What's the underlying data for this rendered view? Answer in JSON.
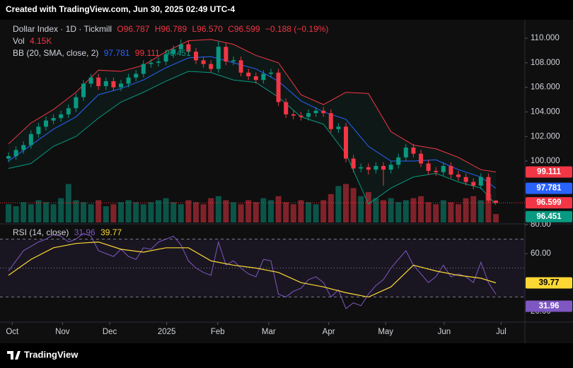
{
  "chart_data": {
    "type": "candlestick",
    "credit": "Created with TradingView.com, Jun 30, 2025 02:49 UTC-4",
    "header": {
      "symbol": "Dollar Index · 1D · Tickmill",
      "open": "O96.787",
      "high": "H96.789",
      "low": "L96.570",
      "close": "C96.599",
      "change": "−0.188 (−0.19%)",
      "vol_label": "Vol",
      "vol": "4.15K",
      "bb_label": "BB (20, SMA, close, 2)",
      "rsi_label": "RSI (14, close)"
    },
    "footer": "TradingView",
    "up_color": "#089981",
    "down_color": "#f23645",
    "open": [
      100.2,
      100.4,
      100.9,
      101.3,
      102.2,
      102.8,
      103.3,
      103.5,
      103.8,
      104.3,
      105.2,
      106.3,
      106.8,
      106.1,
      106.5,
      106.0,
      106.3,
      106.8,
      107.1,
      107.9,
      108.0,
      108.1,
      108.7,
      109.1,
      109.5,
      108.9,
      108.2,
      107.9,
      107.5,
      109.3,
      108.1,
      108.2,
      107.2,
      106.9,
      106.6,
      107.1,
      107.2,
      104.8,
      103.8,
      103.7,
      103.6,
      103.9,
      104.1,
      103.9,
      102.6,
      102.8,
      100.2,
      99.4,
      99.5,
      99.3,
      99.6,
      99.3,
      99.7,
      100.3,
      101.1,
      100.6,
      99.8,
      99.2,
      99.1,
      99.6,
      98.9,
      98.7,
      98.3,
      98.0,
      98.7,
      96.787
    ],
    "high": [
      100.7,
      101.2,
      101.6,
      102.5,
      103.1,
      103.6,
      103.8,
      104.1,
      104.6,
      105.5,
      106.6,
      107.1,
      107.1,
      106.8,
      106.8,
      106.6,
      107.1,
      107.4,
      108.2,
      108.3,
      108.4,
      109.0,
      109.4,
      109.9,
      109.8,
      109.2,
      108.5,
      108.2,
      109.8,
      109.6,
      108.5,
      108.5,
      107.5,
      107.2,
      107.4,
      107.5,
      107.5,
      105.1,
      104.1,
      104.0,
      104.2,
      104.4,
      104.4,
      104.2,
      103.1,
      103.1,
      100.5,
      99.8,
      99.8,
      99.9,
      99.9,
      100.0,
      100.6,
      101.4,
      101.4,
      100.9,
      100.1,
      99.5,
      99.9,
      99.9,
      99.2,
      99.0,
      98.6,
      99.0,
      99.0,
      96.789
    ],
    "low": [
      99.9,
      100.1,
      100.6,
      101.0,
      101.9,
      102.5,
      103.0,
      103.2,
      103.5,
      104.0,
      104.9,
      106.0,
      105.8,
      105.8,
      105.7,
      105.7,
      106.0,
      106.5,
      106.8,
      107.6,
      107.7,
      107.8,
      108.4,
      108.8,
      108.6,
      107.9,
      107.6,
      107.2,
      107.2,
      107.8,
      107.8,
      106.9,
      106.6,
      106.3,
      106.3,
      106.8,
      104.5,
      103.5,
      103.4,
      103.3,
      103.3,
      103.6,
      103.6,
      102.3,
      102.3,
      99.9,
      99.1,
      99.1,
      98.9,
      99.0,
      98.0,
      99.0,
      99.4,
      100.0,
      100.3,
      99.5,
      98.9,
      98.8,
      98.8,
      98.6,
      98.4,
      98.0,
      97.7,
      97.7,
      96.6,
      96.57
    ],
    "close": [
      100.4,
      100.9,
      101.3,
      102.2,
      102.8,
      103.3,
      103.5,
      103.8,
      104.3,
      105.2,
      106.3,
      106.8,
      106.1,
      106.5,
      106.0,
      106.3,
      106.8,
      107.1,
      107.9,
      108.0,
      108.1,
      108.7,
      109.1,
      109.5,
      108.9,
      108.2,
      107.9,
      107.5,
      109.3,
      108.1,
      108.2,
      107.2,
      106.9,
      106.6,
      107.1,
      107.2,
      104.8,
      103.8,
      103.7,
      103.6,
      103.9,
      104.1,
      103.9,
      102.6,
      102.8,
      100.2,
      99.4,
      99.5,
      99.3,
      99.6,
      99.3,
      99.7,
      100.3,
      101.1,
      100.6,
      99.8,
      99.2,
      99.1,
      99.6,
      98.9,
      98.7,
      98.3,
      98.0,
      98.7,
      96.787,
      96.599
    ],
    "ylim": [
      95,
      111.5
    ],
    "yticks": [
      {
        "value": 100,
        "label": "100.000"
      },
      {
        "value": 102,
        "label": "102.000"
      },
      {
        "value": 104,
        "label": "104.000"
      },
      {
        "value": 106,
        "label": "106.000"
      },
      {
        "value": 108,
        "label": "108.000"
      },
      {
        "value": 110,
        "label": "110.000"
      }
    ],
    "xticks": [
      {
        "value": 0.5,
        "label": "Oct"
      },
      {
        "value": 7.2,
        "label": "Nov"
      },
      {
        "value": 13.5,
        "label": "Dec"
      },
      {
        "value": 21.1,
        "label": "2025"
      },
      {
        "value": 27.9,
        "label": "Feb"
      },
      {
        "value": 34.7,
        "label": "Mar"
      },
      {
        "value": 42.7,
        "label": "Apr"
      },
      {
        "value": 50.3,
        "label": "May"
      },
      {
        "value": 58.1,
        "label": "Jun"
      },
      {
        "value": 65.7,
        "label": "Jul"
      }
    ],
    "volume": {
      "ylim": [
        0,
        100
      ],
      "up_color": "rgba(8,153,129,0.5)",
      "down_color": "rgba(242,54,69,0.5)",
      "values": [
        9,
        8,
        10,
        9,
        11,
        10,
        9,
        12,
        19,
        11,
        10,
        9,
        11,
        8,
        9,
        10,
        11,
        10,
        9,
        10,
        11,
        12,
        10,
        9,
        11,
        10,
        9,
        12,
        13,
        11,
        10,
        9,
        11,
        10,
        12,
        11,
        13,
        10,
        9,
        11,
        10,
        9,
        11,
        14,
        18,
        19,
        17,
        13,
        15,
        12,
        11,
        12,
        10,
        11,
        12,
        13,
        10,
        9,
        11,
        10,
        9,
        12,
        13,
        11,
        14,
        4.15
      ]
    },
    "bb": {
      "x": [
        0,
        3,
        6,
        9,
        12,
        15,
        18,
        21,
        24,
        27,
        30,
        33,
        36,
        39,
        42,
        45,
        48,
        51,
        54,
        57,
        60,
        63,
        65
      ],
      "upper": [
        101.4,
        103.1,
        104.2,
        105.6,
        107.4,
        107.3,
        107.8,
        108.9,
        109.8,
        109.9,
        109.5,
        108.6,
        108.0,
        105.4,
        104.6,
        105.6,
        105.5,
        102.4,
        101.3,
        101.0,
        100.3,
        99.3,
        99.111
      ],
      "basis": [
        100.0,
        101.3,
        102.6,
        103.6,
        105.4,
        105.9,
        106.6,
        107.6,
        108.4,
        108.5,
        108.0,
        107.5,
        106.5,
        104.9,
        104.0,
        103.4,
        101.2,
        100.0,
        100.0,
        100.1,
        99.3,
        98.7,
        97.781
      ],
      "lower": [
        99.4,
        99.8,
        101.2,
        102.0,
        103.5,
        104.8,
        105.6,
        106.5,
        107.3,
        107.2,
        106.6,
        106.4,
        105.2,
        103.6,
        103.0,
        100.6,
        96.5,
        97.8,
        98.7,
        99.0,
        98.3,
        97.8,
        96.451
      ],
      "upper_color": "#f23645",
      "basis_color": "#2962ff",
      "lower_color": "#089981",
      "fill": "rgba(8,153,129,0.08)"
    },
    "rsi": {
      "color": "#7e57c2",
      "ma_color": "#fdd835",
      "band_fill": "rgba(126,87,194,0.1)",
      "values": [
        48,
        55,
        62,
        65,
        68,
        70,
        73,
        72,
        68,
        70,
        74,
        72,
        62,
        60,
        58,
        63,
        58,
        56,
        64,
        63,
        68,
        70,
        72,
        66,
        55,
        50,
        47,
        45,
        68,
        52,
        55,
        50,
        46,
        44,
        56,
        55,
        32,
        30,
        34,
        36,
        42,
        44,
        40,
        30,
        35,
        22,
        26,
        24,
        32,
        38,
        42,
        50,
        56,
        62,
        52,
        46,
        40,
        44,
        52,
        44,
        46,
        44,
        40,
        54,
        40,
        31.96
      ],
      "ma": {
        "x": [
          0,
          3,
          6,
          9,
          12,
          15,
          18,
          21,
          24,
          27,
          30,
          33,
          36,
          39,
          42,
          45,
          48,
          51,
          54,
          57,
          60,
          63,
          65
        ],
        "values": [
          45,
          56,
          64,
          67,
          68,
          63,
          61,
          64,
          64,
          55,
          52,
          50,
          47,
          40,
          37,
          33,
          30,
          37,
          52,
          48,
          45,
          43,
          39.77
        ]
      },
      "ylim": [
        13.2,
        80
      ],
      "yticks": [
        {
          "value": 20,
          "label": "20.00"
        },
        {
          "value": 60,
          "label": "60.00"
        },
        {
          "value": 80,
          "label": "80.00"
        }
      ],
      "levels": [
        70,
        50,
        30
      ]
    }
  }
}
